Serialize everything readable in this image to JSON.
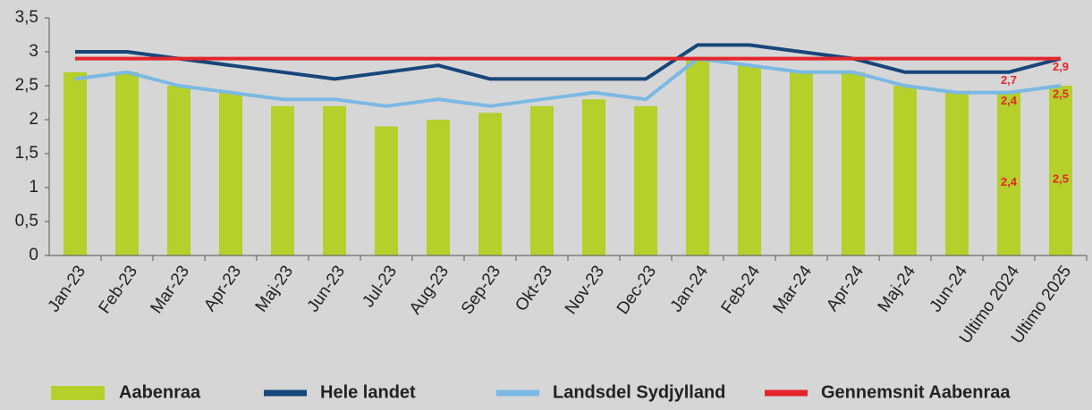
{
  "chart_data": {
    "type": "bar",
    "categories": [
      "Jan-23",
      "Feb-23",
      "Mar-23",
      "Apr-23",
      "Maj-23",
      "Jun-23",
      "Jul-23",
      "Aug-23",
      "Sep-23",
      "Okt-23",
      "Nov-23",
      "Dec-23",
      "Jan-24",
      "Feb-24",
      "Mar-24",
      "Apr-24",
      "Maj-24",
      "Jun-24",
      "Ultimo 2024",
      "Ultimo 2025"
    ],
    "series": [
      {
        "name": "Aabenraa",
        "type": "bar",
        "color": "#b5cf2b",
        "values": [
          2.7,
          2.7,
          2.5,
          2.4,
          2.2,
          2.2,
          1.9,
          2.0,
          2.1,
          2.2,
          2.3,
          2.2,
          2.9,
          2.8,
          2.7,
          2.7,
          2.5,
          2.4,
          2.4,
          2.5
        ],
        "value_labels": [
          null,
          null,
          null,
          null,
          null,
          null,
          null,
          null,
          null,
          null,
          null,
          null,
          null,
          null,
          null,
          null,
          null,
          null,
          "2,4",
          "2,5"
        ]
      },
      {
        "name": "Hele landet",
        "type": "line",
        "color": "#17467a",
        "values": [
          3.0,
          3.0,
          2.9,
          2.8,
          2.7,
          2.6,
          2.7,
          2.8,
          2.6,
          2.6,
          2.6,
          2.6,
          3.1,
          3.1,
          3.0,
          2.9,
          2.7,
          2.7,
          2.7,
          2.9
        ],
        "value_labels": [
          null,
          null,
          null,
          null,
          null,
          null,
          null,
          null,
          null,
          null,
          null,
          null,
          null,
          null,
          null,
          null,
          null,
          null,
          "2,7",
          "2,9"
        ]
      },
      {
        "name": "Landsdel Sydjylland",
        "type": "line",
        "color": "#7ab9e3",
        "values": [
          2.6,
          2.7,
          2.5,
          2.4,
          2.3,
          2.3,
          2.2,
          2.3,
          2.2,
          2.3,
          2.4,
          2.3,
          2.9,
          2.8,
          2.7,
          2.7,
          2.5,
          2.4,
          2.4,
          2.5
        ],
        "value_labels": [
          null,
          null,
          null,
          null,
          null,
          null,
          null,
          null,
          null,
          null,
          null,
          null,
          null,
          null,
          null,
          null,
          null,
          null,
          "2,4",
          "2,5"
        ]
      },
      {
        "name": "Gennemsnit Aabenraa",
        "type": "line",
        "color": "#e3262b",
        "values": [
          2.9,
          2.9,
          2.9,
          2.9,
          2.9,
          2.9,
          2.9,
          2.9,
          2.9,
          2.9,
          2.9,
          2.9,
          2.9,
          2.9,
          2.9,
          2.9,
          2.9,
          2.9,
          2.9,
          2.9
        ]
      }
    ],
    "label_color": "#e3262b",
    "ylim": [
      0,
      3.5
    ],
    "yticks": [
      0,
      {
        "value": 0.5,
        "label": "0,5"
      },
      1,
      {
        "value": 1.5,
        "label": "1,5"
      },
      2,
      {
        "value": 2.5,
        "label": "2,5"
      },
      3,
      {
        "value": 3.5,
        "label": "3,5"
      }
    ],
    "grid": false,
    "legend": "bottom"
  }
}
